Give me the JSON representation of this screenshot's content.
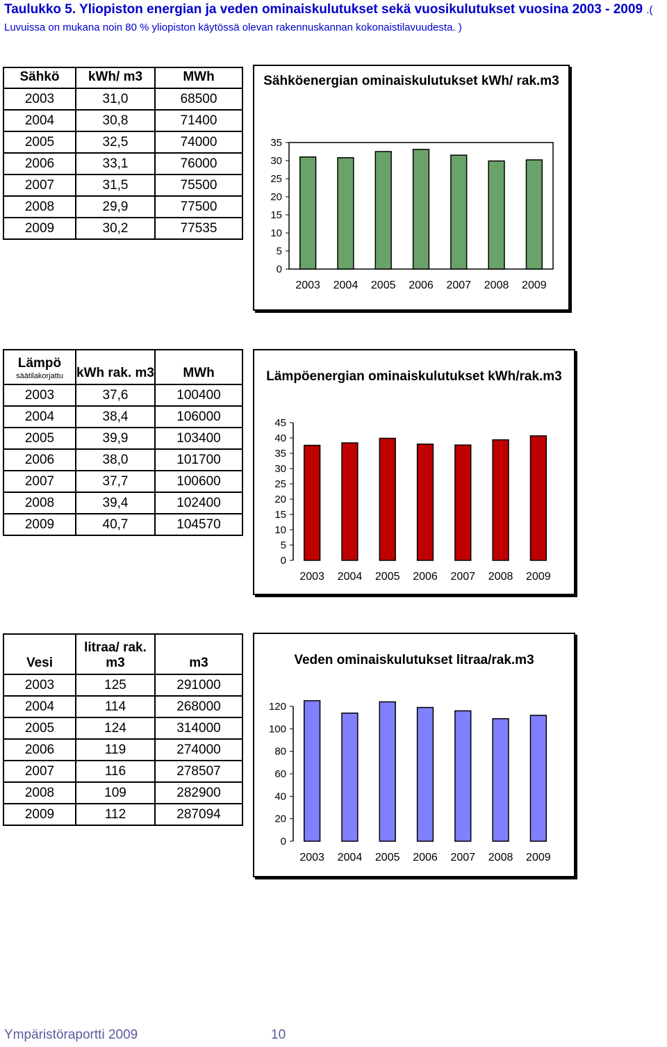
{
  "header": {
    "title": "Taulukko 5. Yliopiston energian ja veden ominaiskulutukset sekä vuosikulutukset vuosina 2003 - 2009",
    "note": ".( Luvuissa on mukana noin 80 % yliopiston käytössä olevan rakennuskannan kokonaistilavuudesta. )"
  },
  "tables": {
    "sahko": {
      "headers": [
        "Sähkö",
        "kWh/ m3",
        "MWh"
      ],
      "sub": "",
      "rows": [
        [
          "2003",
          "31,0",
          "68500"
        ],
        [
          "2004",
          "30,8",
          "71400"
        ],
        [
          "2005",
          "32,5",
          "74000"
        ],
        [
          "2006",
          "33,1",
          "76000"
        ],
        [
          "2007",
          "31,5",
          "75500"
        ],
        [
          "2008",
          "29,9",
          "77500"
        ],
        [
          "2009",
          "30,2",
          "77535"
        ]
      ]
    },
    "lampo": {
      "headers": [
        "Lämpö",
        "kWh rak. m3",
        "MWh"
      ],
      "sub": "säätilakorjattu",
      "rows": [
        [
          "2003",
          "37,6",
          "100400"
        ],
        [
          "2004",
          "38,4",
          "106000"
        ],
        [
          "2005",
          "39,9",
          "103400"
        ],
        [
          "2006",
          "38,0",
          "101700"
        ],
        [
          "2007",
          "37,7",
          "100600"
        ],
        [
          "2008",
          "39,4",
          "102400"
        ],
        [
          "2009",
          "40,7",
          "104570"
        ]
      ]
    },
    "vesi": {
      "headers": [
        "Vesi",
        "litraa/ rak. m3",
        "m3"
      ],
      "sub": "",
      "rows": [
        [
          "2003",
          "125",
          "291000"
        ],
        [
          "2004",
          "114",
          "268000"
        ],
        [
          "2005",
          "124",
          "314000"
        ],
        [
          "2006",
          "119",
          "274000"
        ],
        [
          "2007",
          "116",
          "278507"
        ],
        [
          "2008",
          "109",
          "282900"
        ],
        [
          "2009",
          "112",
          "287094"
        ]
      ]
    }
  },
  "chart_data": [
    {
      "type": "bar",
      "title": "Sähköenergian ominaiskulutukset kWh/ rak.m3",
      "categories": [
        "2003",
        "2004",
        "2005",
        "2006",
        "2007",
        "2008",
        "2009"
      ],
      "values": [
        31.0,
        30.8,
        32.5,
        33.1,
        31.5,
        29.9,
        30.2
      ],
      "ylim": [
        0,
        35
      ],
      "yticks": [
        0,
        5,
        10,
        15,
        20,
        25,
        30,
        35
      ],
      "bar_color": "#6aa36a",
      "xlabel": "",
      "ylabel": "",
      "grid": false,
      "legend": "none"
    },
    {
      "type": "bar",
      "title": "Lämpöenergian ominaiskulutukset kWh/rak.m3",
      "categories": [
        "2003",
        "2004",
        "2005",
        "2006",
        "2007",
        "2008",
        "2009"
      ],
      "values": [
        37.6,
        38.4,
        39.9,
        38.0,
        37.7,
        39.4,
        40.7
      ],
      "ylim": [
        0,
        45
      ],
      "yticks": [
        0,
        5,
        10,
        15,
        20,
        25,
        30,
        35,
        40,
        45
      ],
      "bar_color": "#c00000",
      "xlabel": "",
      "ylabel": "",
      "grid": false,
      "legend": "none"
    },
    {
      "type": "bar",
      "title": "Veden ominaiskulutukset litraa/rak.m3",
      "categories": [
        "2003",
        "2004",
        "2005",
        "2006",
        "2007",
        "2008",
        "2009"
      ],
      "values": [
        125,
        114,
        124,
        119,
        116,
        109,
        112
      ],
      "ylim": [
        0,
        120
      ],
      "yticks": [
        0,
        20,
        40,
        60,
        80,
        100,
        120
      ],
      "bar_color": "#8080ff",
      "xlabel": "",
      "ylabel": "",
      "grid": false,
      "legend": "none"
    }
  ],
  "footer": {
    "text": "Ympäristöraportti 2009",
    "page": "10"
  }
}
